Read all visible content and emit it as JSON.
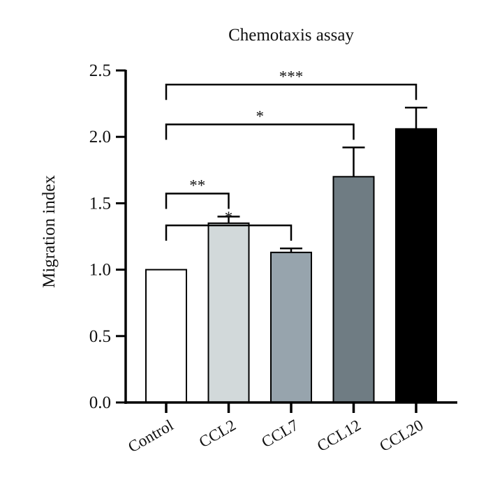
{
  "chart_data": {
    "type": "bar",
    "title": "Chemotaxis assay",
    "xlabel": "",
    "ylabel": "Migration index",
    "ylim": [
      0,
      2.5
    ],
    "yticks": [
      "0.0",
      "0.5",
      "1.0",
      "1.5",
      "2.0",
      "2.5"
    ],
    "categories": [
      "Control",
      "CCL2",
      "CCL7",
      "CCL12",
      "CCL20"
    ],
    "values": [
      1.0,
      1.35,
      1.13,
      1.7,
      2.06
    ],
    "errors": [
      0,
      0.05,
      0.03,
      0.22,
      0.16
    ],
    "bar_colors": [
      "#ffffff",
      "#d2d9da",
      "#97a4ad",
      "#6f7c83",
      "#000000"
    ],
    "significance": [
      {
        "from": "Control",
        "to": "CCL2",
        "label": "**"
      },
      {
        "from": "Control",
        "to": "CCL7",
        "label": "*"
      },
      {
        "from": "Control",
        "to": "CCL12",
        "label": "*"
      },
      {
        "from": "Control",
        "to": "CCL20",
        "label": "***"
      }
    ]
  }
}
